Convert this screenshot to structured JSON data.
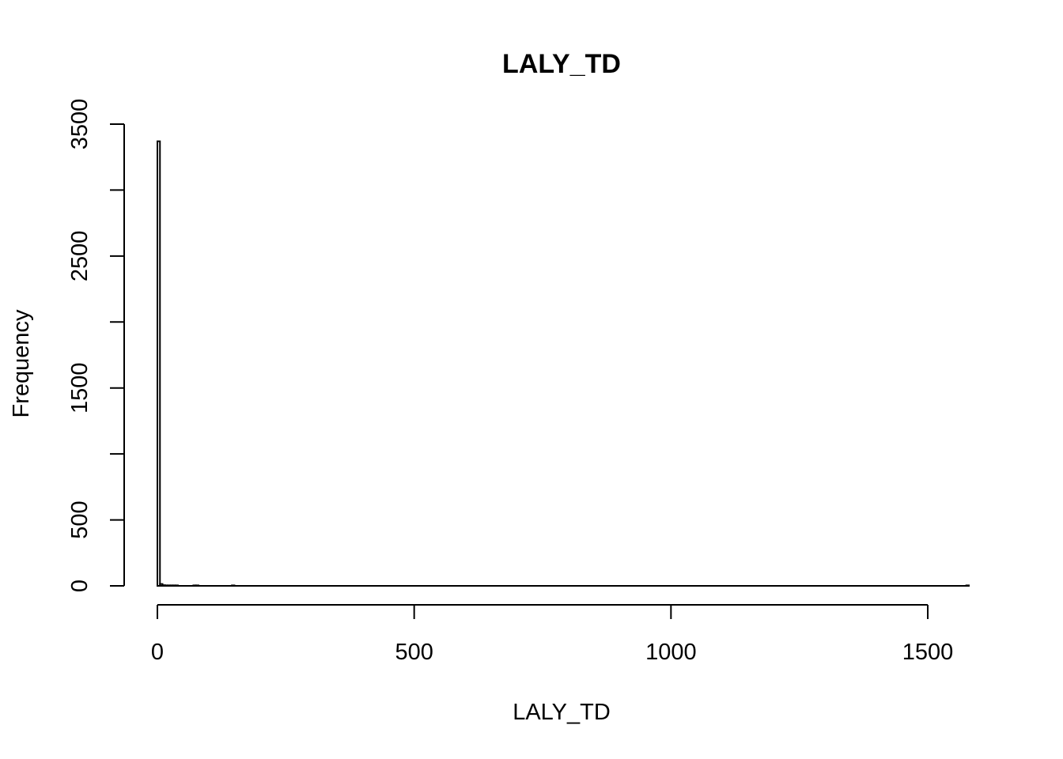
{
  "chart_data": {
    "type": "bar",
    "title": "LALY_TD",
    "xlabel": "LALY_TD",
    "ylabel": "Frequency",
    "xlim": [
      0,
      1580
    ],
    "ylim": [
      0,
      3500
    ],
    "x_ticks": [
      0,
      500,
      1000,
      1500
    ],
    "x_tick_labels": [
      "0",
      "500",
      "1000",
      "1500"
    ],
    "y_ticks": [
      0,
      500,
      1000,
      1500,
      2000,
      2500,
      3000,
      3500
    ],
    "y_tick_labels": [
      "0",
      "500",
      "",
      "1500",
      "",
      "2500",
      "",
      "3500"
    ],
    "bin_width": 5,
    "grid": false,
    "bins": [
      {
        "x0": 0,
        "x1": 5,
        "count": 3370
      },
      {
        "x0": 5,
        "x1": 10,
        "count": 14
      },
      {
        "x0": 10,
        "x1": 15,
        "count": 5
      },
      {
        "x0": 15,
        "x1": 20,
        "count": 3
      },
      {
        "x0": 20,
        "x1": 25,
        "count": 2
      },
      {
        "x0": 25,
        "x1": 30,
        "count": 2
      },
      {
        "x0": 30,
        "x1": 35,
        "count": 1
      },
      {
        "x0": 35,
        "x1": 40,
        "count": 1
      },
      {
        "x0": 70,
        "x1": 75,
        "count": 2
      },
      {
        "x0": 75,
        "x1": 80,
        "count": 1
      },
      {
        "x0": 145,
        "x1": 150,
        "count": 1
      },
      {
        "x0": 1575,
        "x1": 1580,
        "count": 1
      }
    ]
  }
}
